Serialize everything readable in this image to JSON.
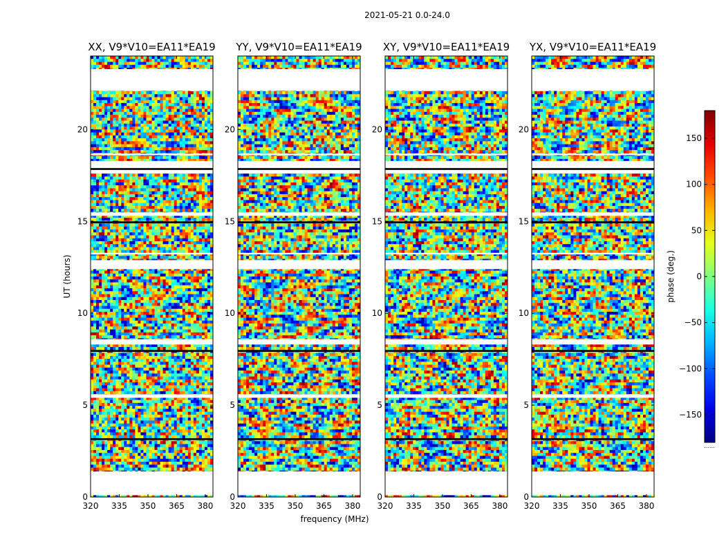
{
  "figure": {
    "suptitle": "2021-05-21 0.0-24.0",
    "colormap": "jet"
  },
  "chart_data": {
    "type": "heatmap",
    "title": "2021-05-21 0.0-24.0",
    "xlabel": "frequency (MHz)",
    "ylabel": "UT (hours)",
    "colorbar_label": "phase (deg.)",
    "xlim": [
      320,
      384
    ],
    "ylim": [
      0,
      24
    ],
    "xticks": [
      320,
      335,
      350,
      365,
      380
    ],
    "yticks": [
      0,
      5,
      10,
      15,
      20
    ],
    "clim": [
      -180,
      180
    ],
    "colorbar_ticks": [
      -150,
      -100,
      -50,
      0,
      50,
      100,
      150
    ],
    "colorbar_footnote": "......",
    "time_coverage_hours": [
      [
        0.0,
        0.1
      ],
      [
        1.4,
        3.1
      ],
      [
        3.2,
        5.4
      ],
      [
        5.6,
        8.3
      ],
      [
        8.6,
        12.4
      ],
      [
        12.9,
        13.2
      ],
      [
        13.3,
        15.3
      ],
      [
        15.5,
        17.6
      ],
      [
        18.3,
        18.6
      ],
      [
        18.7,
        22.1
      ],
      [
        23.3,
        24.0
      ]
    ],
    "flagged_bands_hours": [
      [
        7.9,
        8.0
      ],
      [
        3.1,
        3.2
      ],
      [
        14.9,
        15.0
      ],
      [
        17.8,
        17.9
      ],
      [
        22.1,
        23.3
      ]
    ],
    "panels": [
      {
        "title": "XX, V9*V10=EA11*EA19",
        "correlation": "XX",
        "baseline": "V9*V10=EA11*EA19"
      },
      {
        "title": "YY, V9*V10=EA11*EA19",
        "correlation": "YY",
        "baseline": "V9*V10=EA11*EA19"
      },
      {
        "title": "XY, V9*V10=EA11*EA19",
        "correlation": "XY",
        "baseline": "V9*V10=EA11*EA19"
      },
      {
        "title": "YX, V9*V10=EA11*EA19",
        "correlation": "YX",
        "baseline": "V9*V10=EA11*EA19"
      }
    ]
  }
}
